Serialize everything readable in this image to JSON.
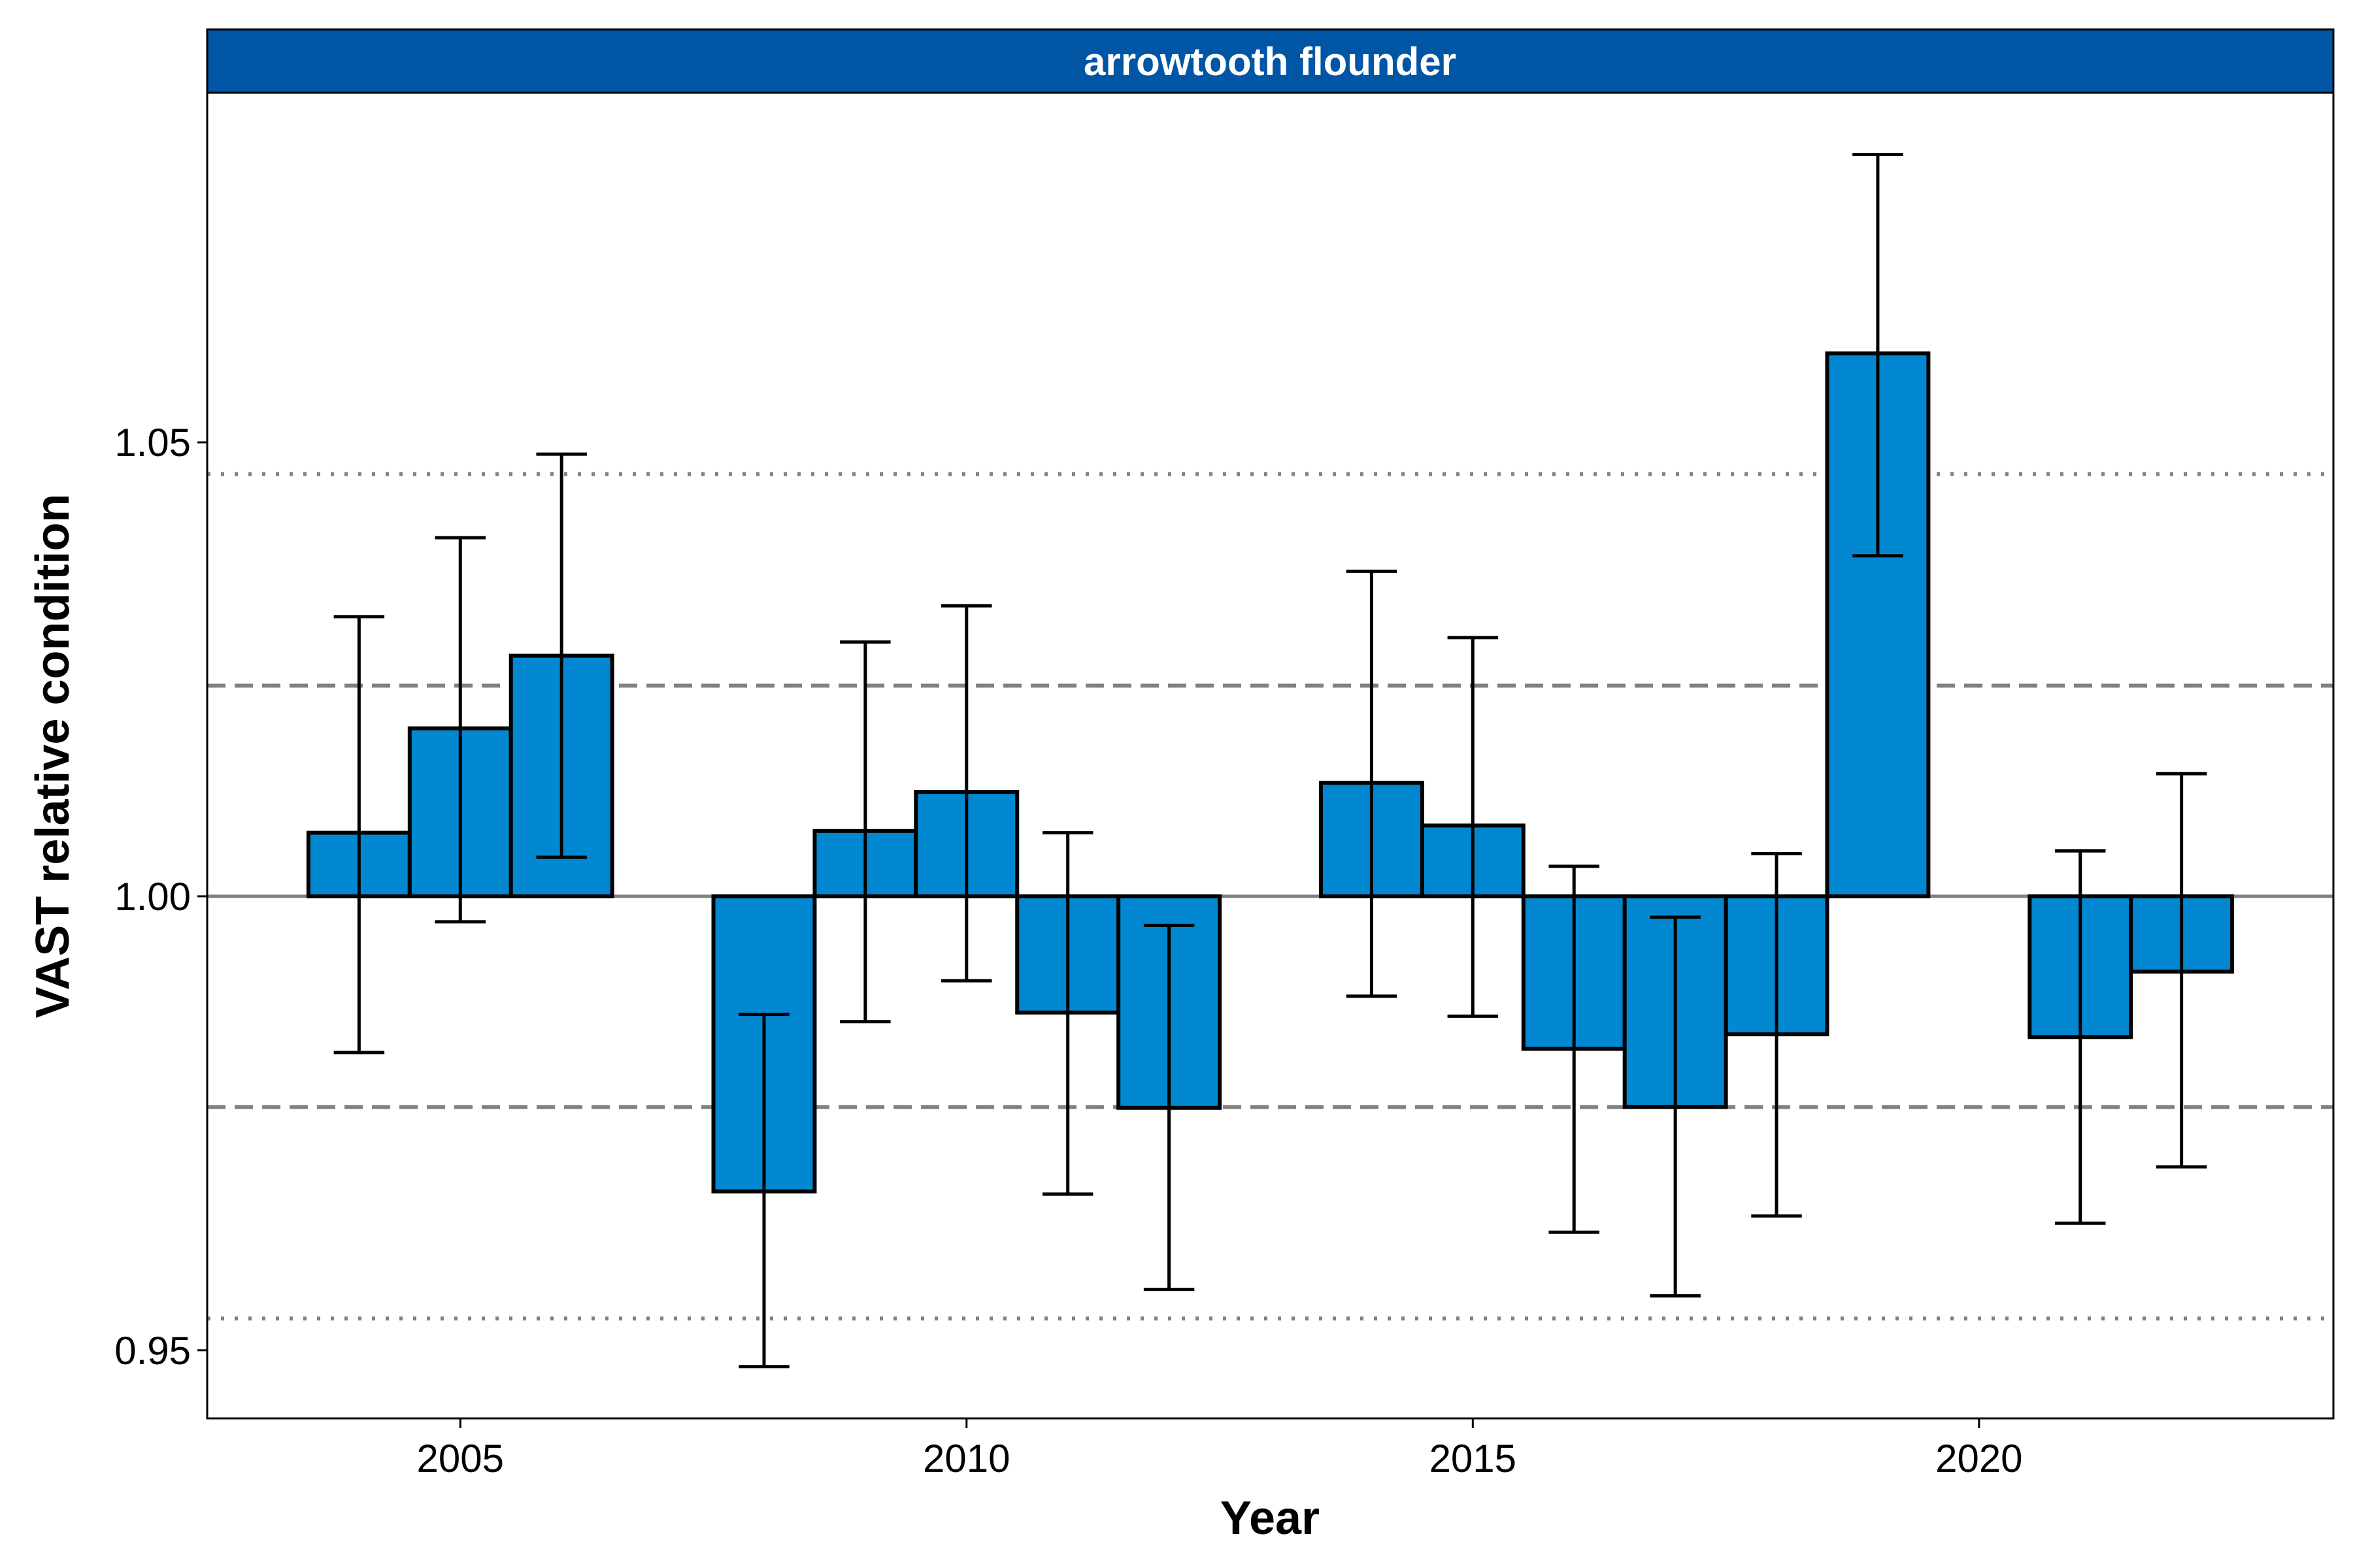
{
  "chart_data": {
    "type": "bar",
    "facet_label": "arrowtooth flounder",
    "xlabel": "Year",
    "ylabel": "VAST relative condition",
    "xlim": [
      2002.5,
      2023.5
    ],
    "ylim": [
      0.9425,
      1.0885
    ],
    "baseline": 1.0,
    "x_ticks": [
      2005,
      2010,
      2015,
      2020
    ],
    "x_tick_labels": [
      "2005",
      "2010",
      "2015",
      "2020"
    ],
    "y_ticks": [
      0.95,
      1.0,
      1.05
    ],
    "y_tick_labels": [
      "0.95",
      "1.00",
      "1.05"
    ],
    "reference_lines": [
      {
        "value": 1.0,
        "style": "solid"
      },
      {
        "value": 1.0232,
        "style": "dashed"
      },
      {
        "value": 0.9768,
        "style": "dashed"
      },
      {
        "value": 1.0465,
        "style": "dotted"
      },
      {
        "value": 0.9535,
        "style": "dotted"
      }
    ],
    "grid": false,
    "series": [
      {
        "x": [
          2004,
          2005,
          2006,
          2008,
          2009,
          2010,
          2011,
          2012,
          2014,
          2015,
          2016,
          2017,
          2018,
          2019,
          2021,
          2022
        ],
        "values": [
          1.007,
          1.0185,
          1.0265,
          0.9675,
          1.0072,
          1.0115,
          0.9872,
          0.9767,
          1.0125,
          1.0078,
          0.9832,
          0.9768,
          0.9848,
          1.0598,
          0.9845,
          0.9917
        ],
        "lower": [
          0.9828,
          0.9972,
          1.0043,
          0.9482,
          0.9862,
          0.9907,
          0.9672,
          0.9567,
          0.989,
          0.9868,
          0.963,
          0.956,
          0.9648,
          1.0375,
          0.964,
          0.9702
        ],
        "upper": [
          1.0308,
          1.0395,
          1.0487,
          0.987,
          1.028,
          1.032,
          1.007,
          0.9968,
          1.0358,
          1.0285,
          1.0033,
          0.9977,
          1.0047,
          1.0817,
          1.005,
          1.0135
        ]
      }
    ],
    "colors": {
      "bar_fill": "#0288d1",
      "bar_stroke": "#000000",
      "strip_fill": "#0055a5",
      "reference_line": "#808080"
    }
  }
}
